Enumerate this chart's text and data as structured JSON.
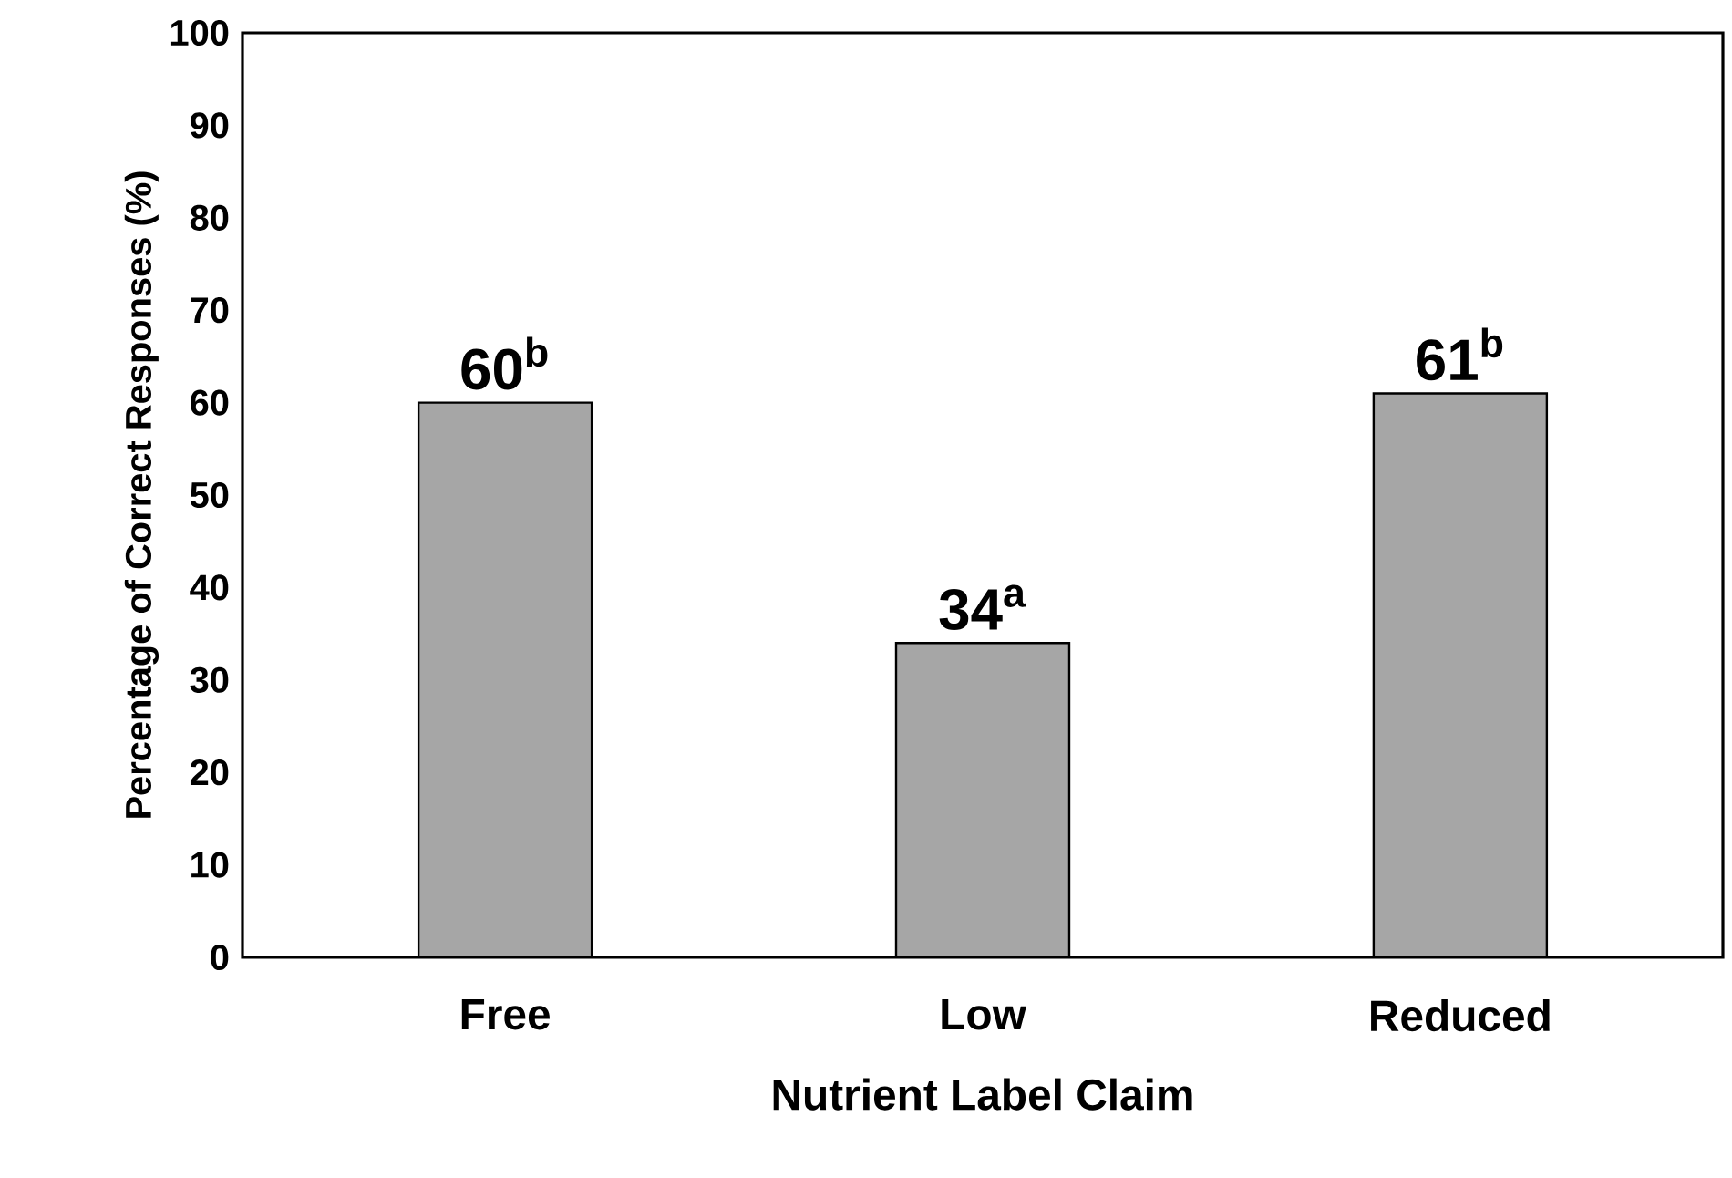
{
  "chart_data": {
    "type": "bar",
    "xlabel": "Nutrient Label Claim",
    "ylabel": "Percentage of Correct Responses (%)",
    "categories": [
      "Free",
      "Low",
      "Reduced"
    ],
    "values": [
      60,
      34,
      61
    ],
    "value_labels": [
      "60$^{b}$",
      "34$^{a}$",
      "61$^{b}$"
    ],
    "color": "#a6a6a6",
    "ylim": [
      0,
      100
    ],
    "yticks": [
      0,
      10,
      20,
      30,
      40,
      50,
      60,
      70,
      80,
      90,
      100
    ]
  }
}
